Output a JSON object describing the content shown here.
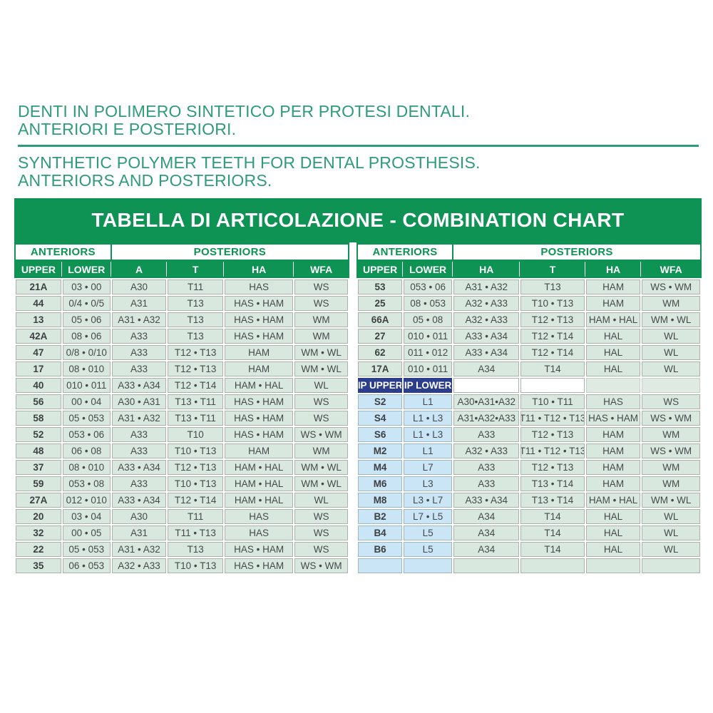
{
  "intro": {
    "title_it_line1": "DENTI IN POLIMERO SINTETICO PER PROTESI DENTALI.",
    "title_it_line2": "ANTERIORI E POSTERIORI.",
    "title_en_line1": "SYNTHETIC POLYMER TEETH FOR DENTAL PROSTHESIS.",
    "title_en_line2": "ANTERIORS AND POSTERIORS."
  },
  "chart": {
    "banner_title": "TABELLA DI ARTICOLAZIONE - COMBINATION CHART",
    "colors": {
      "green": "#0e9355",
      "title_green": "#2e9c74",
      "cell_green": "#d9e8de",
      "cell_blue": "#c9e5f6",
      "navy": "#2b3e8c",
      "border_gray": "#a9b3ab",
      "text_dark": "#45494b"
    },
    "left_table": {
      "group_headers": [
        "ANTERIORS",
        "POSTERIORS"
      ],
      "columns": [
        "UPPER",
        "LOWER",
        "A",
        "T",
        "HA",
        "WFA"
      ],
      "rows": [
        [
          "21A",
          "03 • 00",
          "A30",
          "T11",
          "HAS",
          "WS"
        ],
        [
          "44",
          "0/4 • 0/5",
          "A31",
          "T13",
          "HAS • HAM",
          "WS"
        ],
        [
          "13",
          "05 • 06",
          "A31 • A32",
          "T13",
          "HAS • HAM",
          "WM"
        ],
        [
          "42A",
          "08 • 06",
          "A33",
          "T13",
          "HAS • HAM",
          "WM"
        ],
        [
          "47",
          "0/8 • 0/10",
          "A33",
          "T12 • T13",
          "HAM",
          "WM • WL"
        ],
        [
          "17",
          "08 • 010",
          "A33",
          "T12 • T13",
          "HAM",
          "WM • WL"
        ],
        [
          "40",
          "010 • 011",
          "A33 • A34",
          "T12 • T14",
          "HAM • HAL",
          "WL"
        ],
        [
          "56",
          "00 • 04",
          "A30 • A31",
          "T13 • T11",
          "HAS • HAM",
          "WS"
        ],
        [
          "58",
          "05 • 053",
          "A31 • A32",
          "T13 • T11",
          "HAS • HAM",
          "WS"
        ],
        [
          "52",
          "053 • 06",
          "A33",
          "T10",
          "HAS • HAM",
          "WS • WM"
        ],
        [
          "48",
          "06 • 08",
          "A33",
          "T10 • T13",
          "HAM",
          "WM"
        ],
        [
          "37",
          "08 • 010",
          "A33 • A34",
          "T12 • T13",
          "HAM • HAL",
          "WM • WL"
        ],
        [
          "59",
          "053 • 08",
          "A33",
          "T10 • T13",
          "HAM • HAL",
          "WM • WL"
        ],
        [
          "27A",
          "012 • 010",
          "A33 • A34",
          "T12 • T14",
          "HAM • HAL",
          "WL"
        ],
        [
          "20",
          "03 • 04",
          "A30",
          "T11",
          "HAS",
          "WS"
        ],
        [
          "32",
          "00 • 05",
          "A31",
          "T11 • T13",
          "HAS",
          "WS"
        ],
        [
          "22",
          "05 • 053",
          "A31 • A32",
          "T13",
          "HAS • HAM",
          "WS"
        ],
        [
          "35",
          "06 • 053",
          "A32 • A33",
          "T10 • T13",
          "HAS • HAM",
          "WS • WM"
        ]
      ]
    },
    "right_table": {
      "group_headers": [
        "ANTERIORS",
        "POSTERIORS"
      ],
      "columns": [
        "UPPER",
        "LOWER",
        "HA",
        "T",
        "HA",
        "WFA"
      ],
      "rows_top": [
        [
          "53",
          "053 • 06",
          "A31 • A32",
          "T13",
          "HAM",
          "WS • WM"
        ],
        [
          "25",
          "08 • 053",
          "A32 • A33",
          "T10 • T13",
          "HAM",
          "WM"
        ],
        [
          "66A",
          "05 • 08",
          "A32 • A33",
          "T12 • T13",
          "HAM • HAL",
          "WM • WL"
        ],
        [
          "27",
          "010 • 011",
          "A33 • A34",
          "T12 • T14",
          "HAL",
          "WL"
        ],
        [
          "62",
          "011 • 012",
          "A33 • A34",
          "T12 • T14",
          "HAL",
          "WL"
        ],
        [
          "17A",
          "010 • 011",
          "A34",
          "T14",
          "HAL",
          "WL"
        ]
      ],
      "ip_header": [
        "IP UPPER",
        "IP LOWER"
      ],
      "rows_ip": [
        [
          "S2",
          "L1",
          "A30•A31•A32",
          "T10 • T11",
          "HAS",
          "WS"
        ],
        [
          "S4",
          "L1 • L3",
          "A31•A32•A33",
          "T11 • T12 • T13",
          "HAS • HAM",
          "WS • WM"
        ],
        [
          "S6",
          "L1 • L3",
          "A33",
          "T12 • T13",
          "HAM",
          "WM"
        ],
        [
          "M2",
          "L1",
          "A32 • A33",
          "T11 • T12 • T13",
          "HAM",
          "WS • WM"
        ],
        [
          "M4",
          "L7",
          "A33",
          "T12 • T13",
          "HAM",
          "WM"
        ],
        [
          "M6",
          "L3",
          "A33",
          "T13 • T14",
          "HAM",
          "WM"
        ],
        [
          "M8",
          "L3 • L7",
          "A33 • A34",
          "T13 • T14",
          "HAM • HAL",
          "WM • WL"
        ],
        [
          "B2",
          "L7 • L5",
          "A34",
          "T14",
          "HAL",
          "WL"
        ],
        [
          "B4",
          "L5",
          "A34",
          "T14",
          "HAL",
          "WL"
        ],
        [
          "B6",
          "L5",
          "A34",
          "T14",
          "HAL",
          "WL"
        ],
        [
          "",
          "",
          "",
          "",
          "",
          ""
        ]
      ]
    }
  }
}
